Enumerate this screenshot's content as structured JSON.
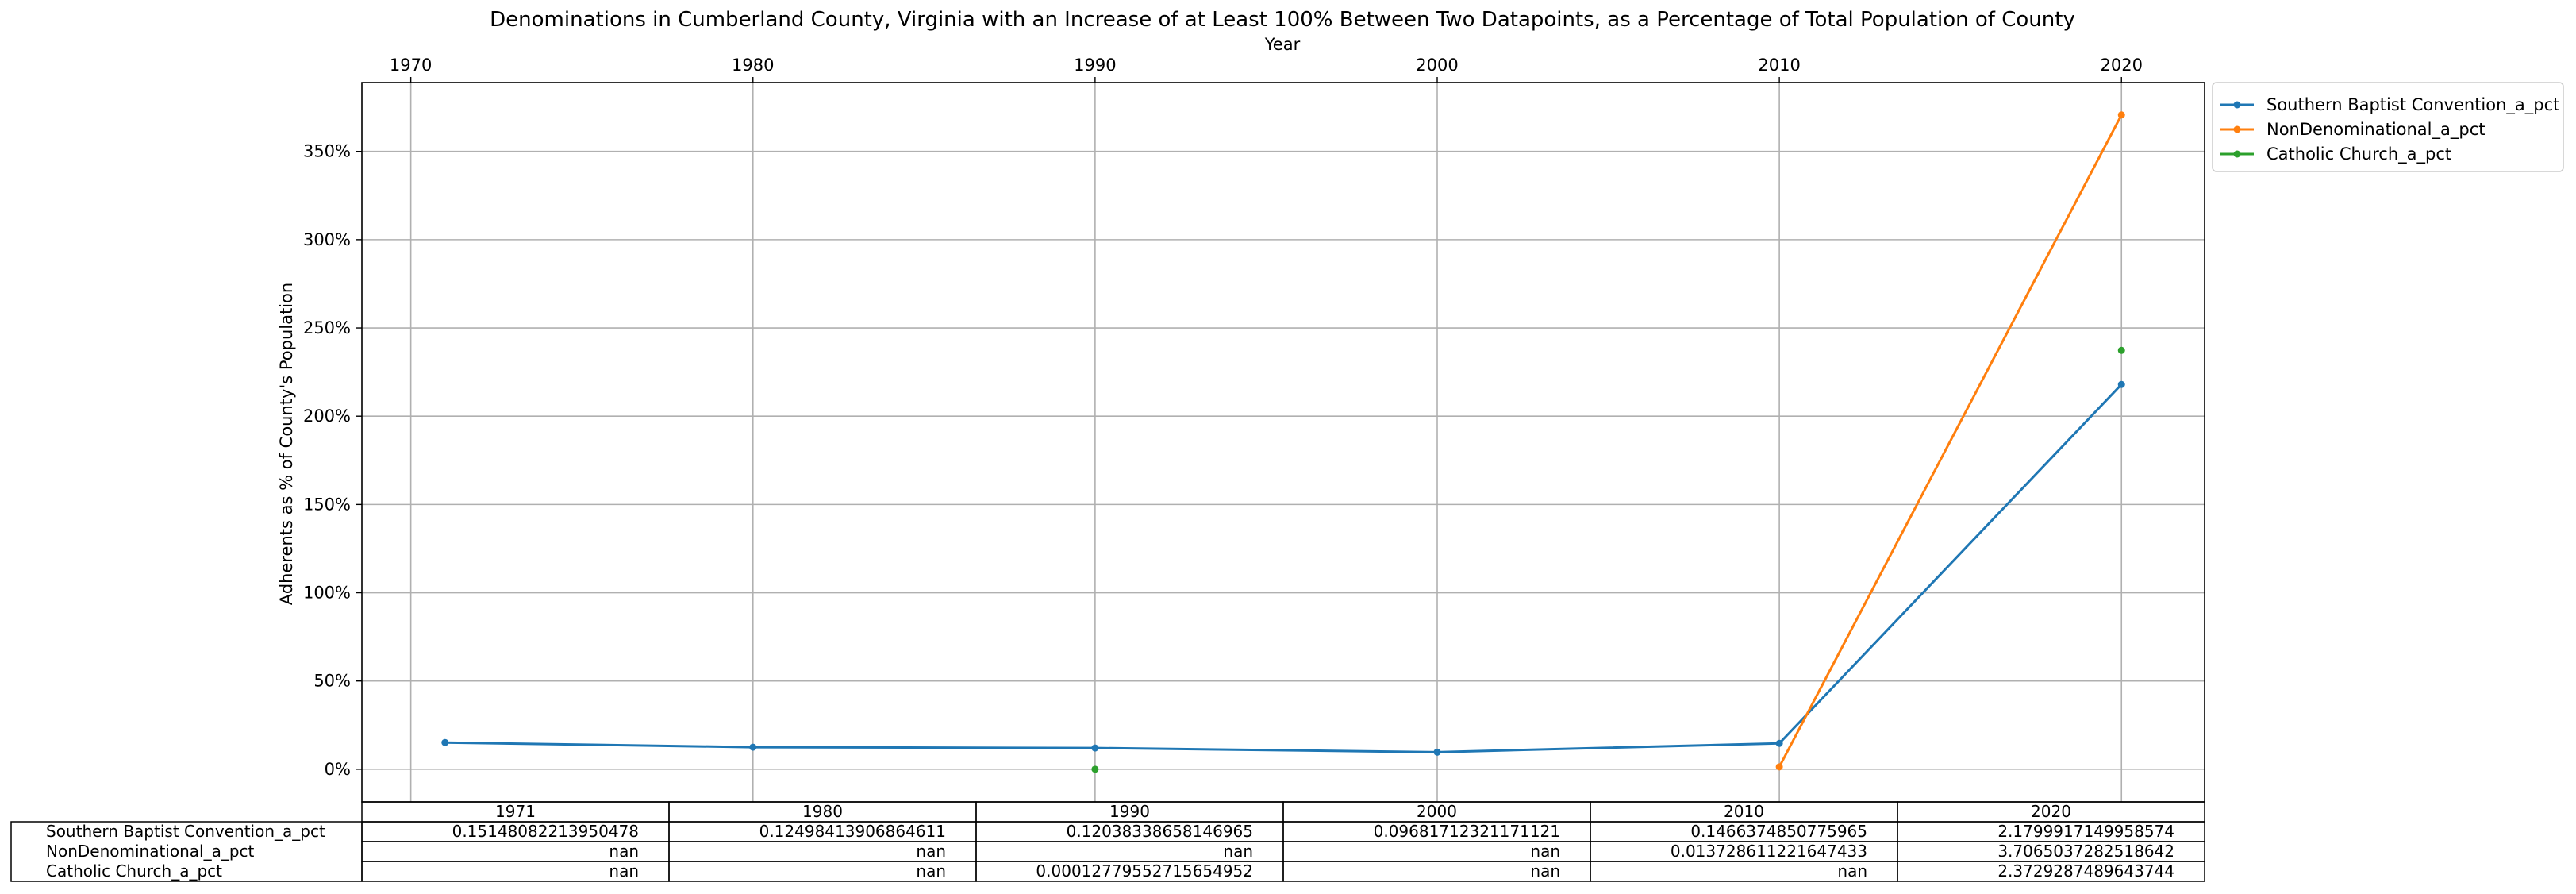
{
  "chart_data": {
    "type": "line",
    "title": "Denominations in Cumberland County, Virginia with an Increase of at Least 100% Between Two Datapoints, as a Percentage of Total Population of County",
    "xlabel": "Year",
    "ylabel": "Adherents as % of County's Population",
    "x_ticks": [
      "1970",
      "1980",
      "1990",
      "2000",
      "2010",
      "2020"
    ],
    "y_ticks": [
      {
        "value": 0,
        "label": "0%"
      },
      {
        "value": 0.5,
        "label": "50%"
      },
      {
        "value": 1.0,
        "label": "100%"
      },
      {
        "value": 1.5,
        "label": "150%"
      },
      {
        "value": 2.0,
        "label": "200%"
      },
      {
        "value": 2.5,
        "label": "250%"
      },
      {
        "value": 3.0,
        "label": "300%"
      },
      {
        "value": 3.5,
        "label": "350%"
      }
    ],
    "xlim": [
      1968.57,
      2022.43
    ],
    "ylim": [
      -0.185,
      3.89
    ],
    "grid": true,
    "legend_position": "outside upper right",
    "x": [
      1971,
      1980,
      1990,
      2000,
      2010,
      2020
    ],
    "series": [
      {
        "name": "Southern Baptist Convention_a_pct",
        "color": "#1f77b4",
        "values": [
          0.15148082213950478,
          0.12498413906864611,
          0.12038338658146965,
          0.09681712321171121,
          0.1466374850775965,
          2.1799917149958574
        ]
      },
      {
        "name": "NonDenominational_a_pct",
        "color": "#ff7f0e",
        "values": [
          null,
          null,
          null,
          null,
          0.013728611221647433,
          3.7065037282518642
        ]
      },
      {
        "name": "Catholic Church_a_pct",
        "color": "#2ca02c",
        "values": [
          null,
          null,
          0.00012779552715654952,
          null,
          null,
          2.3729287489643744
        ]
      }
    ],
    "table": {
      "columns": [
        "1971",
        "1980",
        "1990",
        "2000",
        "2010",
        "2020"
      ],
      "rows": [
        {
          "label": "Southern Baptist Convention_a_pct",
          "cells": [
            "0.15148082213950478",
            "0.12498413906864611",
            "0.12038338658146965",
            "0.09681712321171121",
            "0.1466374850775965",
            "2.1799917149958574"
          ]
        },
        {
          "label": "NonDenominational_a_pct",
          "cells": [
            "nan",
            "nan",
            "nan",
            "nan",
            "0.013728611221647433",
            "3.7065037282518642"
          ]
        },
        {
          "label": "Catholic Church_a_pct",
          "cells": [
            "nan",
            "nan",
            "0.00012779552715654952",
            "nan",
            "nan",
            "2.3729287489643744"
          ]
        }
      ]
    }
  }
}
